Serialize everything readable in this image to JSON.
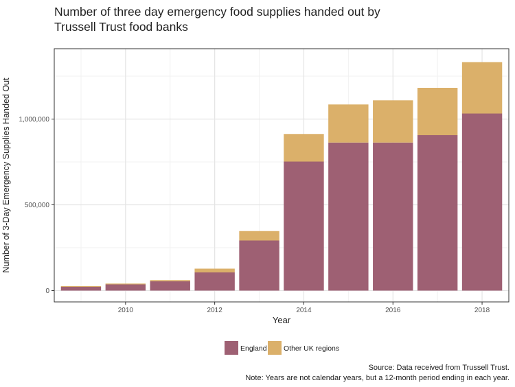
{
  "title_line1": "Number of three day emergency food supplies handed out by",
  "title_line2": "Trussell Trust food banks",
  "source": "Source: Data received from Trussell Trust.",
  "note": "Note: Years are not calendar years, but a 12-month period ending in each year.",
  "colors": {
    "england": "#9e6073",
    "other": "#dbb06a",
    "panel": "#ffffff",
    "grid_major": "#e4e4e4",
    "grid_minor": "#f1f1f1"
  },
  "chart_data": {
    "type": "bar",
    "stacked": true,
    "xlabel": "Year",
    "ylabel": "Number of 3-Day Emergency Supplies Handed Out",
    "x": [
      2009,
      2010,
      2011,
      2012,
      2013,
      2014,
      2015,
      2016,
      2017,
      2018
    ],
    "x_ticks": [
      2010,
      2012,
      2014,
      2016,
      2018
    ],
    "x_tick_labels": [
      "2010",
      "2012",
      "2014",
      "2016",
      "2018"
    ],
    "xlim": [
      2008.4,
      2018.6
    ],
    "y_ticks": [
      0,
      500000,
      1000000
    ],
    "y_tick_labels": [
      "0",
      "500,000",
      "1,000,000"
    ],
    "ylim": [
      -66000,
      1410000
    ],
    "series": [
      {
        "name": "England",
        "values": [
          22000,
          36000,
          54000,
          106000,
          292000,
          752000,
          863000,
          863000,
          906000,
          1032000
        ]
      },
      {
        "name": "Other UK regions",
        "values": [
          4000,
          5000,
          7000,
          22000,
          55000,
          161000,
          222000,
          246000,
          276000,
          300000
        ]
      }
    ],
    "legend_position": "bottom",
    "grid": true
  }
}
